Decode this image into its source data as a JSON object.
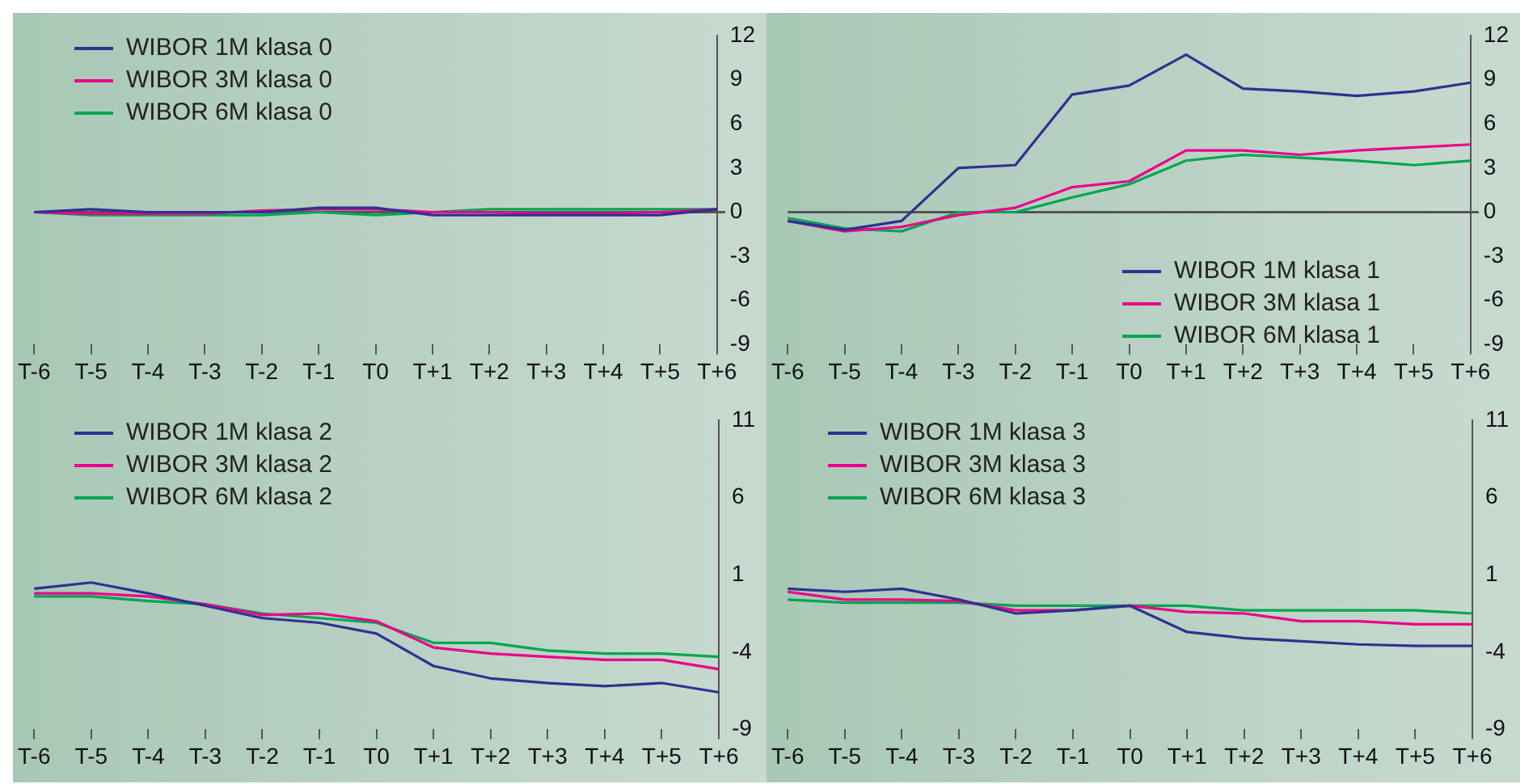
{
  "chart_data": [
    {
      "type": "line",
      "categories": [
        "T-6",
        "T-5",
        "T-4",
        "T-3",
        "T-2",
        "T-1",
        "T0",
        "T+1",
        "T+2",
        "T+3",
        "T+4",
        "T+5",
        "T+6"
      ],
      "ylim": [
        -9,
        12
      ],
      "yticks": [
        -9,
        -6,
        -3,
        0,
        3,
        6,
        9,
        12
      ],
      "legend": "top left",
      "marker": "none",
      "series": [
        {
          "name": "WIBOR 1M klasa 0",
          "color": "#2e3192",
          "values": [
            0,
            0.2,
            0,
            0,
            0,
            0.3,
            0.3,
            -0.2,
            -0.2,
            -0.2,
            -0.2,
            -0.2,
            0.2
          ]
        },
        {
          "name": "WIBOR 3M klasa 0",
          "color": "#ec008c",
          "values": [
            0,
            -0.1,
            -0.1,
            -0.1,
            0.1,
            0.2,
            0.2,
            0,
            0,
            -0.1,
            -0.1,
            0,
            0.2
          ]
        },
        {
          "name": "WIBOR 6M klasa 0",
          "color": "#00a651",
          "values": [
            0,
            -0.2,
            -0.2,
            -0.2,
            -0.2,
            0,
            -0.2,
            0,
            0.2,
            0.2,
            0.2,
            0.2,
            0.2
          ]
        }
      ]
    },
    {
      "type": "line",
      "categories": [
        "T-6",
        "T-5",
        "T-4",
        "T-3",
        "T-2",
        "T-1",
        "T0",
        "T+1",
        "T+2",
        "T+3",
        "T+4",
        "T+5",
        "T+6"
      ],
      "ylim": [
        -9,
        12
      ],
      "yticks": [
        -9,
        -6,
        -3,
        0,
        3,
        6,
        9,
        12
      ],
      "legend": "bottom right",
      "marker": "none",
      "series": [
        {
          "name": "WIBOR 1M klasa 1",
          "color": "#2e3192",
          "values": [
            -0.6,
            -1.2,
            -0.6,
            3,
            3.2,
            8,
            8.6,
            10.7,
            8.4,
            8.2,
            7.9,
            8.2,
            8.8
          ]
        },
        {
          "name": "WIBOR 3M klasa 1",
          "color": "#ec008c",
          "values": [
            -0.6,
            -1.3,
            -1.0,
            -0.2,
            0.3,
            1.7,
            2.1,
            4.2,
            4.2,
            3.9,
            4.2,
            4.4,
            4.6
          ]
        },
        {
          "name": "WIBOR 6M klasa 1",
          "color": "#00a651",
          "values": [
            -0.4,
            -1.1,
            -1.3,
            0,
            0,
            1.0,
            1.9,
            3.5,
            3.9,
            3.7,
            3.5,
            3.2,
            3.5
          ]
        }
      ]
    },
    {
      "type": "line",
      "categories": [
        "T-6",
        "T-5",
        "T-4",
        "T-3",
        "T-2",
        "T-1",
        "T0",
        "T+1",
        "T+2",
        "T+3",
        "T+4",
        "T+5",
        "T+6"
      ],
      "ylim": [
        -9,
        11
      ],
      "yticks": [
        -9,
        -4,
        1,
        6,
        11
      ],
      "legend": "top left",
      "marker": "none",
      "series": [
        {
          "name": "WIBOR 1M klasa 2",
          "color": "#2e3192",
          "values": [
            0.1,
            0.5,
            -0.2,
            -1.0,
            -1.8,
            -2.1,
            -2.8,
            -4.9,
            -5.7,
            -6.0,
            -6.2,
            -6.0,
            -6.6
          ]
        },
        {
          "name": "WIBOR 3M klasa 2",
          "color": "#ec008c",
          "values": [
            -0.2,
            -0.2,
            -0.4,
            -0.9,
            -1.6,
            -1.5,
            -2.0,
            -3.7,
            -4.1,
            -4.3,
            -4.5,
            -4.5,
            -5.1
          ]
        },
        {
          "name": "WIBOR 6M klasa 2",
          "color": "#00a651",
          "values": [
            -0.4,
            -0.4,
            -0.7,
            -0.9,
            -1.5,
            -1.8,
            -2.1,
            -3.4,
            -3.4,
            -3.9,
            -4.1,
            -4.1,
            -4.3
          ]
        }
      ]
    },
    {
      "type": "line",
      "categories": [
        "T-6",
        "T-5",
        "T-4",
        "T-3",
        "T-2",
        "T-1",
        "T0",
        "T+1",
        "T+2",
        "T+3",
        "T+4",
        "T+5",
        "T+6"
      ],
      "ylim": [
        -9,
        11
      ],
      "yticks": [
        -9,
        -4,
        1,
        6,
        11
      ],
      "legend": "top left",
      "marker": "none",
      "series": [
        {
          "name": "WIBOR 1M klasa 3",
          "color": "#2e3192",
          "values": [
            0.1,
            -0.1,
            0.1,
            -0.6,
            -1.5,
            -1.3,
            -1.0,
            -2.7,
            -3.1,
            -3.3,
            -3.5,
            -3.6,
            -3.6
          ]
        },
        {
          "name": "WIBOR 3M klasa 3",
          "color": "#ec008c",
          "values": [
            -0.1,
            -0.6,
            -0.6,
            -0.7,
            -1.3,
            -1.3,
            -1.0,
            -1.4,
            -1.5,
            -2.0,
            -2.0,
            -2.2,
            -2.2
          ]
        },
        {
          "name": "WIBOR 6M klasa 3",
          "color": "#00a651",
          "values": [
            -0.6,
            -0.8,
            -0.8,
            -0.8,
            -1.0,
            -1.0,
            -1.0,
            -1.0,
            -1.3,
            -1.3,
            -1.3,
            -1.3,
            -1.5
          ]
        }
      ]
    }
  ]
}
